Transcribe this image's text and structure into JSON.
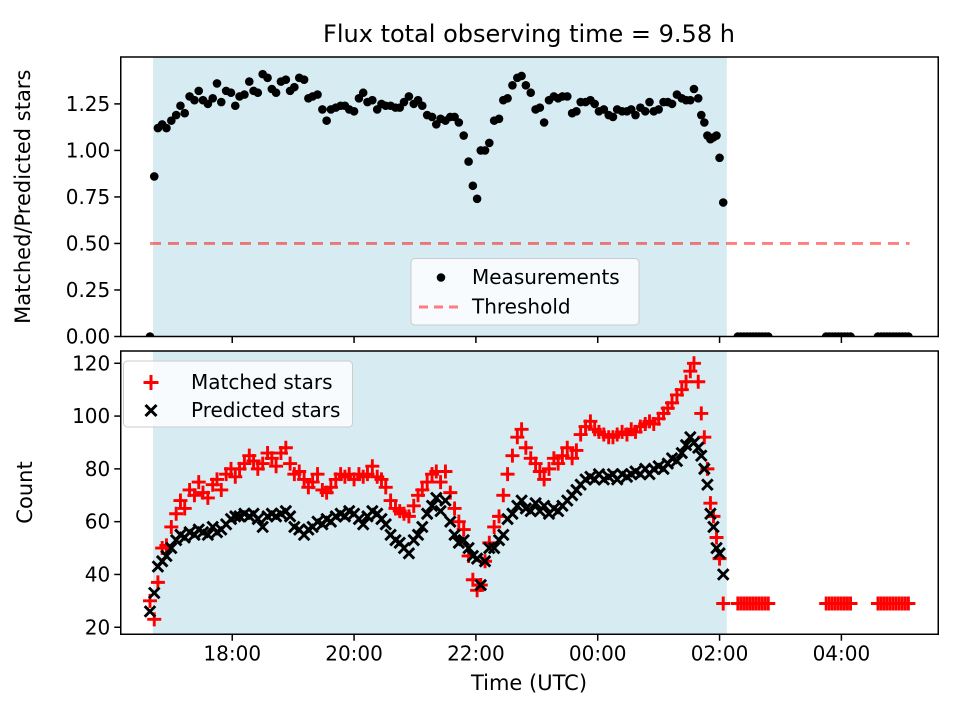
{
  "figure": {
    "title": "Flux total observing time = 9.58 h",
    "background_color": "#ffffff",
    "span_fill_color": "#add8e6",
    "span_alpha": 0.5,
    "threshold_color": "#ff0000",
    "threshold_alpha": 0.5,
    "measurement_color": "#000000",
    "matched_color": "#ff0000",
    "predicted_color": "#000000"
  },
  "chart_data": [
    {
      "type": "scatter",
      "title": "Flux total observing time = 9.58 h",
      "xlabel": "",
      "ylabel": "Matched/Predicted stars",
      "xlim": [
        16.17,
        29.59
      ],
      "ylim": [
        0,
        1.502
      ],
      "grid": false,
      "legend_position": "lower center",
      "shaded_span_hours": [
        16.7,
        26.12
      ],
      "yticks": [
        {
          "v": 0.0,
          "label": "0.00"
        },
        {
          "v": 0.25,
          "label": "0.25"
        },
        {
          "v": 0.5,
          "label": "0.50"
        },
        {
          "v": 0.75,
          "label": "0.75"
        },
        {
          "v": 1.0,
          "label": "1.00"
        },
        {
          "v": 1.25,
          "label": "1.25"
        }
      ],
      "xticks": [
        {
          "v": 18,
          "label": "18:00"
        },
        {
          "v": 20,
          "label": "20:00"
        },
        {
          "v": 22,
          "label": "22:00"
        },
        {
          "v": 24,
          "label": "00:00"
        },
        {
          "v": 26,
          "label": "02:00"
        },
        {
          "v": 28,
          "label": "04:00"
        }
      ],
      "series": [
        {
          "name": "Measurements",
          "marker": "dot",
          "color": "#000000",
          "x": [
            16.65,
            16.72,
            16.78,
            16.85,
            16.92,
            17.0,
            17.08,
            17.15,
            17.22,
            17.3,
            17.38,
            17.45,
            17.52,
            17.6,
            17.68,
            17.75,
            17.82,
            17.9,
            17.98,
            18.05,
            18.12,
            18.2,
            18.28,
            18.35,
            18.42,
            18.5,
            18.58,
            18.65,
            18.72,
            18.8,
            18.88,
            18.95,
            19.02,
            19.1,
            19.18,
            19.25,
            19.32,
            19.4,
            19.48,
            19.55,
            19.62,
            19.7,
            19.78,
            19.85,
            19.92,
            20.0,
            20.08,
            20.15,
            20.22,
            20.3,
            20.38,
            20.45,
            20.52,
            20.6,
            20.68,
            20.75,
            20.82,
            20.9,
            20.98,
            21.05,
            21.12,
            21.2,
            21.28,
            21.35,
            21.42,
            21.5,
            21.58,
            21.65,
            21.72,
            21.8,
            21.88,
            21.95,
            22.02,
            22.08,
            22.15,
            22.22,
            22.3,
            22.38,
            22.45,
            22.52,
            22.6,
            22.68,
            22.75,
            22.82,
            22.9,
            22.98,
            23.05,
            23.12,
            23.2,
            23.28,
            23.35,
            23.42,
            23.5,
            23.58,
            23.65,
            23.72,
            23.8,
            23.88,
            23.95,
            24.02,
            24.1,
            24.18,
            24.25,
            24.32,
            24.4,
            24.48,
            24.55,
            24.62,
            24.7,
            24.78,
            24.85,
            24.92,
            25.0,
            25.08,
            25.15,
            25.22,
            25.3,
            25.38,
            25.45,
            25.52,
            25.58,
            25.65,
            25.7,
            25.75,
            25.8,
            25.85,
            25.9,
            25.95,
            26.0,
            26.06,
            26.3,
            26.35,
            26.4,
            26.45,
            26.5,
            26.55,
            26.6,
            26.65,
            26.7,
            26.75,
            26.8,
            27.75,
            27.8,
            27.85,
            27.9,
            27.95,
            28.0,
            28.05,
            28.1,
            28.15,
            28.6,
            28.65,
            28.7,
            28.75,
            28.8,
            28.85,
            28.9,
            28.95,
            29.0,
            29.05,
            29.1
          ],
          "y": [
            0.0,
            0.86,
            1.12,
            1.14,
            1.12,
            1.16,
            1.19,
            1.24,
            1.2,
            1.29,
            1.27,
            1.32,
            1.27,
            1.25,
            1.28,
            1.36,
            1.26,
            1.32,
            1.31,
            1.24,
            1.29,
            1.3,
            1.37,
            1.32,
            1.31,
            1.41,
            1.39,
            1.33,
            1.31,
            1.37,
            1.38,
            1.32,
            1.34,
            1.39,
            1.38,
            1.28,
            1.29,
            1.3,
            1.22,
            1.16,
            1.22,
            1.23,
            1.24,
            1.24,
            1.22,
            1.21,
            1.28,
            1.31,
            1.26,
            1.27,
            1.22,
            1.25,
            1.24,
            1.24,
            1.23,
            1.23,
            1.26,
            1.29,
            1.25,
            1.27,
            1.24,
            1.19,
            1.18,
            1.14,
            1.17,
            1.16,
            1.18,
            1.18,
            1.15,
            1.08,
            0.94,
            0.81,
            0.74,
            1.0,
            1.0,
            1.04,
            1.16,
            1.17,
            1.27,
            1.28,
            1.35,
            1.39,
            1.4,
            1.35,
            1.31,
            1.22,
            1.23,
            1.15,
            1.27,
            1.29,
            1.28,
            1.29,
            1.29,
            1.2,
            1.21,
            1.26,
            1.26,
            1.27,
            1.25,
            1.21,
            1.22,
            1.19,
            1.18,
            1.22,
            1.21,
            1.21,
            1.22,
            1.19,
            1.23,
            1.21,
            1.26,
            1.21,
            1.22,
            1.26,
            1.26,
            1.25,
            1.3,
            1.28,
            1.27,
            1.27,
            1.33,
            1.28,
            1.19,
            1.15,
            1.08,
            1.06,
            1.07,
            1.08,
            0.96,
            0.72,
            0.0,
            0.0,
            0.0,
            0.0,
            0.0,
            0.0,
            0.0,
            0.0,
            0.0,
            0.0,
            0.0,
            0.0,
            0.0,
            0.0,
            0.0,
            0.0,
            0.0,
            0.0,
            0.0,
            0.0,
            0.0,
            0.0,
            0.0,
            0.0,
            0.0,
            0.0,
            0.0,
            0.0,
            0.0,
            0.0,
            0.0
          ]
        },
        {
          "name": "Threshold",
          "style": "dashed-hline",
          "color": "#ff0000",
          "alpha": 0.5,
          "y": 0.5,
          "x_start": 16.65,
          "x_end": 29.12
        }
      ]
    },
    {
      "type": "scatter",
      "title": "",
      "xlabel": "Time (UTC)",
      "ylabel": "Count",
      "xlim": [
        16.17,
        29.59
      ],
      "ylim": [
        17.35,
        124.65
      ],
      "grid": false,
      "legend_position": "upper left",
      "shaded_span_hours": [
        16.7,
        26.12
      ],
      "yticks": [
        {
          "v": 20,
          "label": "20"
        },
        {
          "v": 40,
          "label": "40"
        },
        {
          "v": 60,
          "label": "60"
        },
        {
          "v": 80,
          "label": "80"
        },
        {
          "v": 100,
          "label": "100"
        },
        {
          "v": 120,
          "label": "120"
        }
      ],
      "xticks": [
        {
          "v": 18,
          "label": "18:00"
        },
        {
          "v": 20,
          "label": "20:00"
        },
        {
          "v": 22,
          "label": "22:00"
        },
        {
          "v": 24,
          "label": "00:00"
        },
        {
          "v": 26,
          "label": "02:00"
        },
        {
          "v": 28,
          "label": "04:00"
        }
      ],
      "series": [
        {
          "name": "Matched stars",
          "marker": "plus",
          "color": "#ff0000",
          "x": [
            16.65,
            16.72,
            16.78,
            16.85,
            16.92,
            17.0,
            17.08,
            17.15,
            17.22,
            17.3,
            17.38,
            17.45,
            17.52,
            17.6,
            17.68,
            17.75,
            17.82,
            17.9,
            17.98,
            18.05,
            18.12,
            18.2,
            18.28,
            18.35,
            18.42,
            18.5,
            18.58,
            18.65,
            18.72,
            18.8,
            18.88,
            18.95,
            19.02,
            19.1,
            19.18,
            19.25,
            19.32,
            19.4,
            19.48,
            19.55,
            19.62,
            19.7,
            19.78,
            19.85,
            19.92,
            20.0,
            20.08,
            20.15,
            20.22,
            20.3,
            20.38,
            20.45,
            20.52,
            20.6,
            20.68,
            20.75,
            20.82,
            20.9,
            20.98,
            21.05,
            21.12,
            21.2,
            21.28,
            21.35,
            21.42,
            21.5,
            21.58,
            21.65,
            21.72,
            21.8,
            21.88,
            21.95,
            22.02,
            22.08,
            22.15,
            22.22,
            22.3,
            22.38,
            22.45,
            22.52,
            22.6,
            22.68,
            22.75,
            22.82,
            22.9,
            22.98,
            23.05,
            23.12,
            23.2,
            23.28,
            23.35,
            23.42,
            23.5,
            23.58,
            23.65,
            23.72,
            23.8,
            23.88,
            23.95,
            24.02,
            24.1,
            24.18,
            24.25,
            24.32,
            24.4,
            24.48,
            24.55,
            24.62,
            24.7,
            24.78,
            24.85,
            24.92,
            25.0,
            25.08,
            25.15,
            25.22,
            25.3,
            25.38,
            25.45,
            25.52,
            25.58,
            25.65,
            25.7,
            25.75,
            25.8,
            25.85,
            25.9,
            25.95,
            26.0,
            26.06,
            26.3,
            26.35,
            26.4,
            26.45,
            26.5,
            26.55,
            26.6,
            26.65,
            26.7,
            26.75,
            26.8,
            27.75,
            27.8,
            27.85,
            27.9,
            27.95,
            28.0,
            28.05,
            28.1,
            28.15,
            28.6,
            28.65,
            28.7,
            28.75,
            28.8,
            28.85,
            28.9,
            28.95,
            29.0,
            29.05,
            29.1
          ],
          "y": [
            30,
            23,
            37,
            50,
            51,
            58,
            63,
            68,
            65,
            72,
            70,
            75,
            71,
            69,
            74,
            76,
            72,
            78,
            80,
            77,
            80,
            82,
            85,
            83,
            80,
            82,
            86,
            84,
            81,
            86,
            88,
            82,
            78,
            79,
            76,
            73,
            75,
            78,
            72,
            71,
            73,
            76,
            78,
            77,
            78,
            76,
            78,
            77,
            78,
            81,
            77,
            76,
            73,
            68,
            65,
            64,
            63,
            62,
            66,
            70,
            72,
            75,
            78,
            79,
            75,
            79,
            71,
            65,
            60,
            57,
            47,
            38,
            34,
            36,
            45,
            52,
            58,
            62,
            70,
            78,
            85,
            92,
            95,
            88,
            84,
            82,
            79,
            76,
            80,
            84,
            82,
            85,
            88,
            84,
            87,
            93,
            96,
            98,
            95,
            94,
            93,
            92,
            92,
            93,
            94,
            93,
            95,
            94,
            96,
            97,
            98,
            97,
            99,
            101,
            103,
            105,
            108,
            110,
            113,
            117,
            120,
            113,
            101,
            92,
            80,
            67,
            62,
            54,
            46,
            29,
            29,
            29,
            29,
            29,
            29,
            29,
            29,
            29,
            29,
            29,
            29,
            29,
            29,
            29,
            29,
            29,
            29,
            29,
            29,
            29,
            29,
            29,
            29,
            29,
            29,
            29,
            29,
            29,
            29,
            29,
            29
          ]
        },
        {
          "name": "Predicted stars",
          "marker": "x",
          "color": "#000000",
          "x": [
            16.65,
            16.72,
            16.78,
            16.85,
            16.92,
            17.0,
            17.08,
            17.15,
            17.22,
            17.3,
            17.38,
            17.45,
            17.52,
            17.6,
            17.68,
            17.75,
            17.82,
            17.9,
            17.98,
            18.05,
            18.12,
            18.2,
            18.28,
            18.35,
            18.42,
            18.5,
            18.58,
            18.65,
            18.72,
            18.8,
            18.88,
            18.95,
            19.02,
            19.1,
            19.18,
            19.25,
            19.32,
            19.4,
            19.48,
            19.55,
            19.62,
            19.7,
            19.78,
            19.85,
            19.92,
            20.0,
            20.08,
            20.15,
            20.22,
            20.3,
            20.38,
            20.45,
            20.52,
            20.6,
            20.68,
            20.75,
            20.82,
            20.9,
            20.98,
            21.05,
            21.12,
            21.2,
            21.28,
            21.35,
            21.42,
            21.5,
            21.58,
            21.65,
            21.72,
            21.8,
            21.88,
            21.95,
            22.02,
            22.08,
            22.15,
            22.22,
            22.3,
            22.38,
            22.45,
            22.52,
            22.6,
            22.68,
            22.75,
            22.82,
            22.9,
            22.98,
            23.05,
            23.12,
            23.2,
            23.28,
            23.35,
            23.42,
            23.5,
            23.58,
            23.65,
            23.72,
            23.8,
            23.88,
            23.95,
            24.02,
            24.1,
            24.18,
            24.25,
            24.32,
            24.4,
            24.48,
            24.55,
            24.62,
            24.7,
            24.78,
            24.85,
            24.92,
            25.0,
            25.08,
            25.15,
            25.22,
            25.3,
            25.38,
            25.45,
            25.52,
            25.58,
            25.65,
            25.7,
            25.75,
            25.8,
            25.85,
            25.9,
            25.95,
            26.0,
            26.06
          ],
          "y": [
            26,
            33,
            43,
            45,
            47,
            50,
            53,
            55,
            54,
            56,
            55,
            57,
            56,
            55,
            58,
            56,
            57,
            59,
            61,
            62,
            62,
            63,
            62,
            63,
            61,
            58,
            62,
            63,
            62,
            63,
            64,
            62,
            58,
            57,
            55,
            57,
            58,
            60,
            59,
            61,
            60,
            62,
            63,
            62,
            64,
            63,
            61,
            59,
            62,
            64,
            63,
            61,
            59,
            55,
            53,
            52,
            50,
            48,
            53,
            55,
            58,
            63,
            66,
            69,
            64,
            68,
            60,
            55,
            52,
            53,
            50,
            47,
            46,
            36,
            45,
            50,
            50,
            53,
            55,
            61,
            63,
            66,
            68,
            65,
            64,
            67,
            64,
            66,
            63,
            65,
            64,
            66,
            68,
            70,
            72,
            74,
            76,
            77,
            76,
            78,
            76,
            77,
            78,
            76,
            78,
            77,
            78,
            79,
            78,
            80,
            78,
            80,
            81,
            80,
            82,
            84,
            83,
            86,
            89,
            92,
            90,
            88,
            85,
            80,
            74,
            63,
            58,
            50,
            48,
            40
          ]
        }
      ]
    }
  ]
}
